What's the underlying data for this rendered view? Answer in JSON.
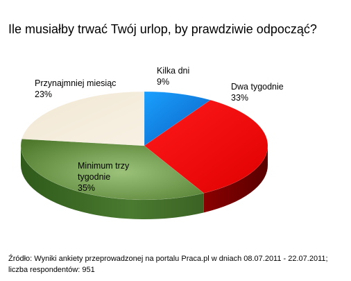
{
  "title": "Ile musiałby trwać Twój urlop, by prawdziwie odpocząć?",
  "chart_data": {
    "type": "pie",
    "title": "Ile musiałby trwać Twój urlop, by prawdziwie odpocząć?",
    "slices": [
      {
        "label": "Kilka dni",
        "value": 9,
        "value_text": "9%",
        "color": "#1e88e0"
      },
      {
        "label": "Dwa tygodnie",
        "value": 33,
        "value_text": "33%",
        "color": "#ff0000"
      },
      {
        "label": "Minimum trzy tygodnie",
        "value": 35,
        "value_text": "35%",
        "color": "#6e9a48"
      },
      {
        "label": "Przynajmniej miesiąc",
        "value": 23,
        "value_text": "23%",
        "color": "#f3ead7"
      }
    ],
    "three_d": true
  },
  "source": "Źródło: Wyniki ankiety przeprowadzonej na portalu Praca.pl w dniach 08.07.2011 - 22.07.2011; liczba respondentów: 951"
}
